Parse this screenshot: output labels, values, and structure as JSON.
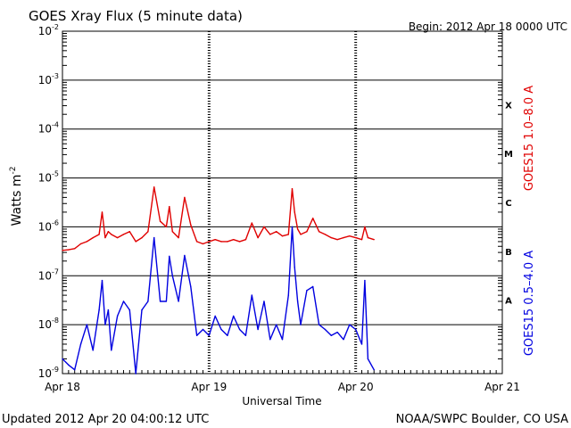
{
  "header": {
    "title": "GOES Xray Flux (5 minute data)",
    "begin": "Begin:  2012 Apr 18 0000 UTC"
  },
  "footer": {
    "updated": "Updated 2012 Apr 20 04:00:12 UTC",
    "credit": "NOAA/SWPC Boulder, CO USA"
  },
  "chart_data": {
    "type": "line",
    "title": "GOES Xray Flux (5 minute data)",
    "xlabel": "Universal Time",
    "ylabel": "Watts m",
    "ylabel_sup": "-2",
    "y_scale": "log",
    "ylim": [
      1e-09,
      0.01
    ],
    "xlim": [
      "2012-04-18 00:00",
      "2012-04-21 00:00"
    ],
    "x_ticks": [
      "Apr 18",
      "Apr 19",
      "Apr 20",
      "Apr 21"
    ],
    "y_ticks": [
      {
        "base": "10",
        "exp": "-2"
      },
      {
        "base": "10",
        "exp": "-3"
      },
      {
        "base": "10",
        "exp": "-4"
      },
      {
        "base": "10",
        "exp": "-5"
      },
      {
        "base": "10",
        "exp": "-6"
      },
      {
        "base": "10",
        "exp": "-7"
      },
      {
        "base": "10",
        "exp": "-8"
      },
      {
        "base": "10",
        "exp": "-9"
      }
    ],
    "flare_classes": [
      "X",
      "M",
      "C",
      "B",
      "A"
    ],
    "grid": "horizontal at each decade; dashed vertical at day boundaries",
    "series": [
      {
        "name": "GOES15 1.0–8.0 A",
        "color": "#e00000",
        "x_hours": [
          0,
          1,
          2,
          3,
          4,
          5,
          6,
          6.5,
          7,
          7.5,
          8,
          9,
          10,
          11,
          12,
          13,
          14,
          15,
          16,
          17,
          17.5,
          18,
          19,
          20,
          21,
          22,
          23,
          24,
          25,
          26,
          27,
          28,
          29,
          30,
          31,
          32,
          33,
          34,
          35,
          36,
          37,
          37.6,
          38,
          38.5,
          39,
          40,
          41,
          42,
          43,
          44,
          45,
          46,
          47,
          48,
          49,
          49.5,
          50,
          51
        ],
        "values": [
          3.3e-07,
          3.4e-07,
          3.6e-07,
          4.5e-07,
          5e-07,
          6e-07,
          7e-07,
          2e-06,
          6e-07,
          8e-07,
          7e-07,
          6e-07,
          7e-07,
          8e-07,
          5e-07,
          6e-07,
          8e-07,
          6.5e-06,
          1.3e-06,
          1e-06,
          2.6e-06,
          8e-07,
          6e-07,
          4e-06,
          1.1e-06,
          5e-07,
          4.5e-07,
          5e-07,
          5.5e-07,
          5e-07,
          5e-07,
          5.5e-07,
          5e-07,
          5.5e-07,
          1.2e-06,
          6e-07,
          1e-06,
          7e-07,
          8e-07,
          6.5e-07,
          7e-07,
          6e-06,
          2e-06,
          9e-07,
          7e-07,
          8e-07,
          1.5e-06,
          8e-07,
          7e-07,
          6e-07,
          5.5e-07,
          6e-07,
          6.5e-07,
          6e-07,
          5.5e-07,
          1e-06,
          6e-07,
          5.5e-07
        ]
      },
      {
        "name": "GOES15 0.5–4.0 A",
        "color": "#0000e0",
        "x_hours": [
          0,
          1,
          2,
          3,
          4,
          5,
          6,
          6.5,
          7,
          7.5,
          8,
          9,
          10,
          11,
          12,
          13,
          14,
          15,
          16,
          17,
          17.5,
          18,
          19,
          20,
          21,
          22,
          23,
          24,
          25,
          26,
          27,
          28,
          29,
          30,
          31,
          32,
          33,
          34,
          35,
          36,
          37,
          37.6,
          38,
          38.5,
          39,
          40,
          41,
          42,
          43,
          44,
          45,
          46,
          47,
          48,
          49,
          49.5,
          50,
          51
        ],
        "values": [
          2e-09,
          1.5e-09,
          1.2e-09,
          4e-09,
          1e-08,
          3e-09,
          2e-08,
          8e-08,
          1e-08,
          2e-08,
          3e-09,
          1.5e-08,
          3e-08,
          2e-08,
          1e-09,
          2e-08,
          3e-08,
          6e-07,
          3e-08,
          3e-08,
          2.5e-07,
          1e-07,
          3e-08,
          2.6e-07,
          6e-08,
          6e-09,
          8e-09,
          6e-09,
          1.5e-08,
          8e-09,
          6e-09,
          1.5e-08,
          8e-09,
          6e-09,
          4e-08,
          8e-09,
          3e-08,
          5e-09,
          1e-08,
          5e-09,
          4e-08,
          1e-06,
          1.5e-07,
          3e-08,
          1e-08,
          5e-08,
          6e-08,
          1e-08,
          8e-09,
          6e-09,
          7e-09,
          5e-09,
          1e-08,
          8e-09,
          4e-09,
          8e-08,
          2e-09,
          1.2e-09
        ]
      }
    ]
  }
}
